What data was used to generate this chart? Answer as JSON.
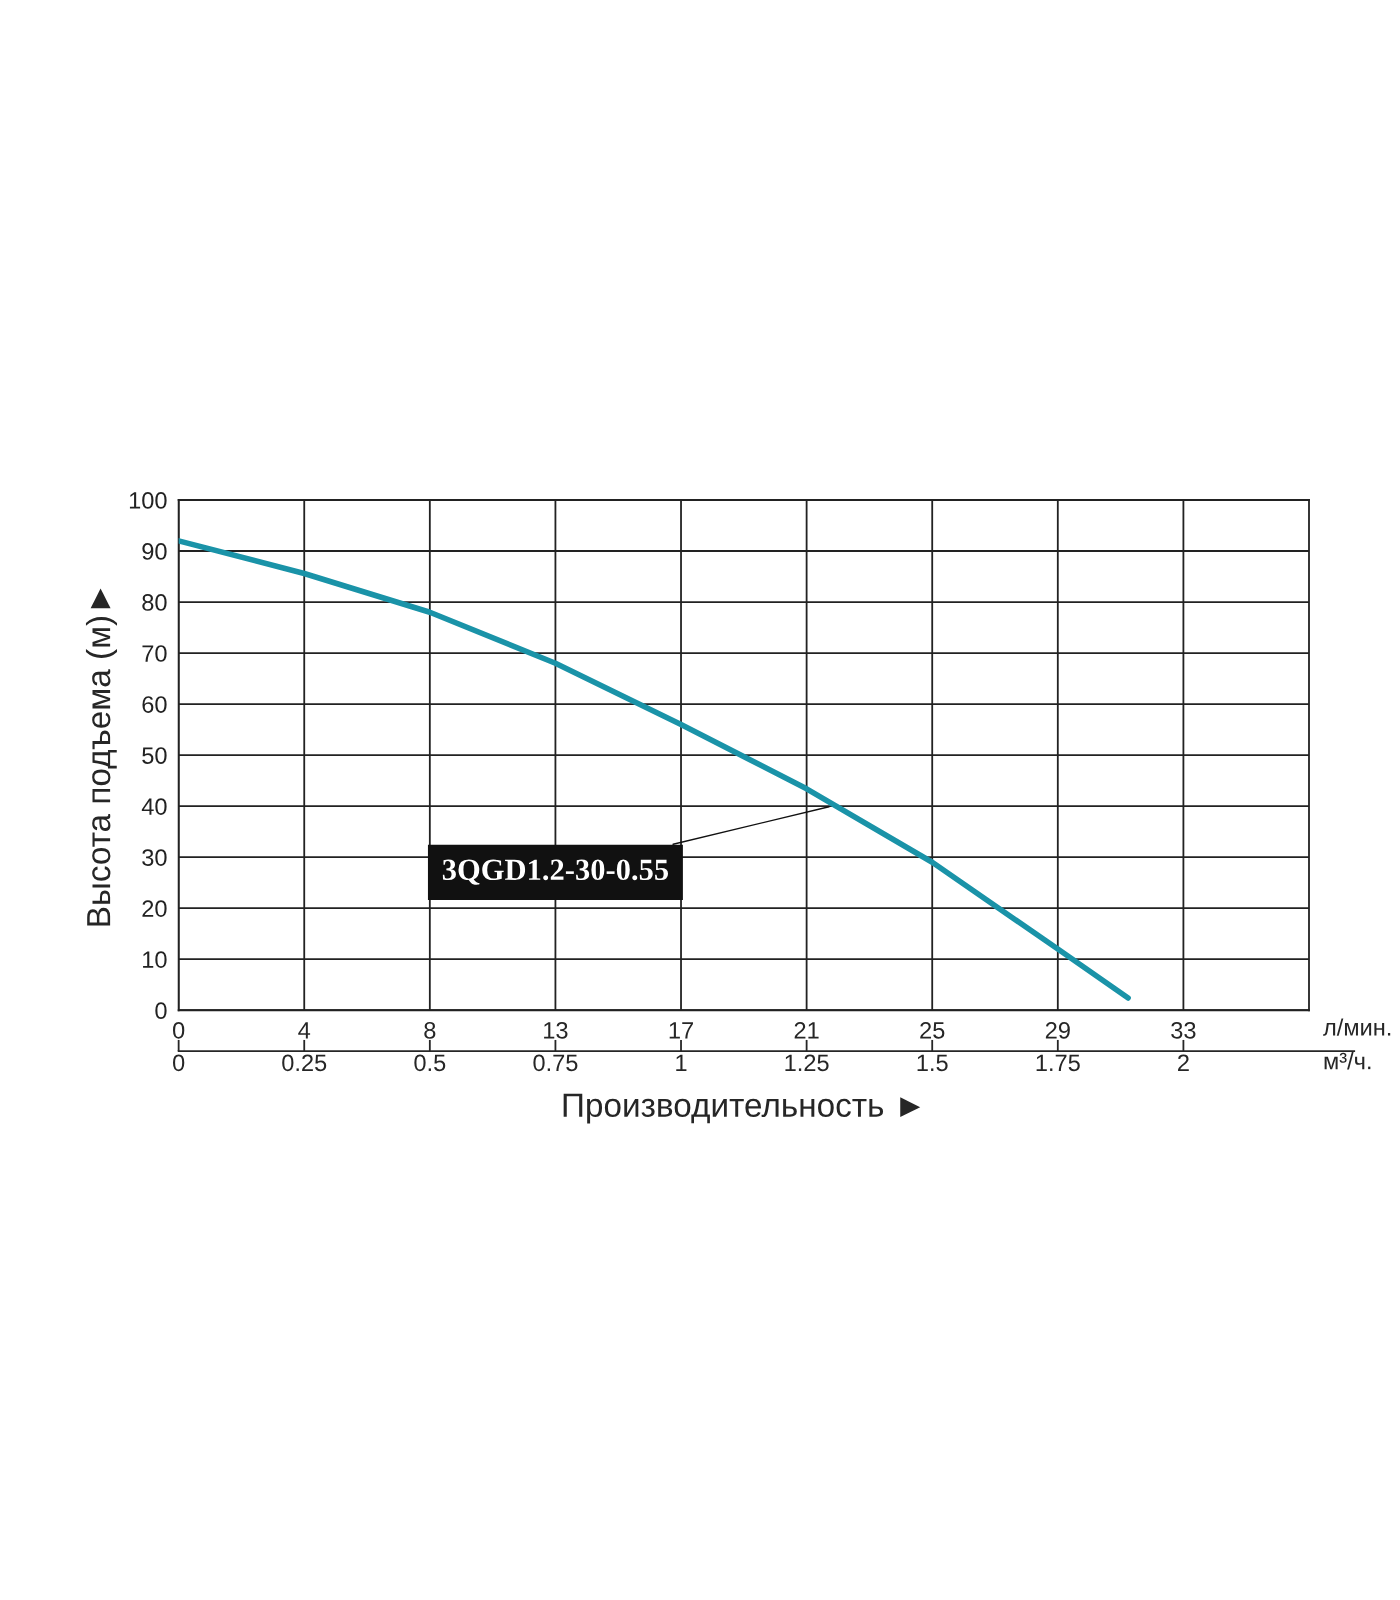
{
  "chart_data": {
    "type": "line",
    "xlabel": "Производительность ►",
    "ylabel": "Высота подъема (м)►",
    "x2label": "л/мин.",
    "x": [
      0,
      0.25,
      0.5,
      0.75,
      1.0,
      1.25,
      1.5,
      1.75,
      1.89
    ],
    "series": [
      {
        "color": "#1a93a8",
        "values": [
          92,
          85.6,
          78,
          68,
          56,
          43.4,
          29,
          12,
          2.4
        ]
      }
    ],
    "xlim": [
      0,
      2.25
    ],
    "xticks": [
      0,
      0.25,
      0.5,
      0.75,
      1,
      1.25,
      1.5,
      1.75,
      2
    ],
    "x2lim": [
      0,
      37.5
    ],
    "x2ticks": [
      0,
      {
        "value": 4.1667,
        "label": "4"
      },
      {
        "value": 8.3333,
        "label": "8"
      },
      {
        "value": 12.5,
        "label": "13"
      },
      {
        "value": 16.667,
        "label": "17"
      },
      {
        "value": 20.833,
        "label": "21"
      },
      25,
      {
        "value": 29.167,
        "label": "29"
      },
      {
        "value": 33.333,
        "label": "33"
      }
    ],
    "ylim": [
      0,
      100
    ],
    "yticks": [
      0,
      10,
      20,
      30,
      40,
      50,
      60,
      70,
      80,
      90,
      100
    ],
    "grid": true,
    "marker": "none",
    "line_style": "solid",
    "annotations": [
      {
        "text": "3QGD1.2-30-0.55",
        "x": 1.3,
        "y": 40
      },
      "м³/ч."
    ]
  }
}
